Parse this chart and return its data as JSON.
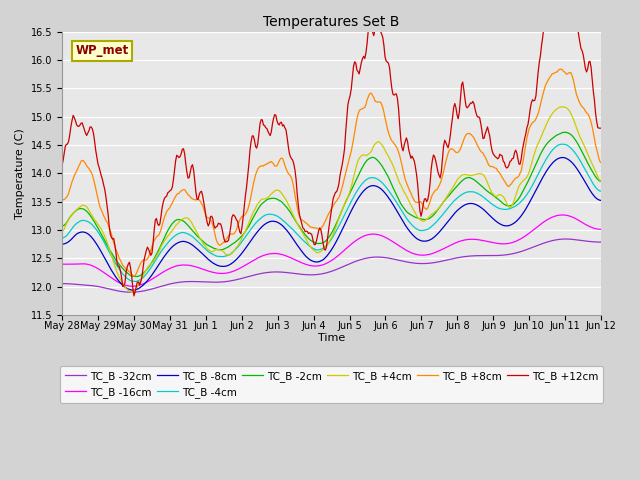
{
  "title": "Temperatures Set B",
  "xlabel": "Time",
  "ylabel": "Temperature (C)",
  "ylim": [
    11.5,
    16.5
  ],
  "background_color": "#d3d3d3",
  "plot_bg_color": "#e8e8e8",
  "grid_color": "#ffffff",
  "wp_met_label": "WP_met",
  "wp_met_color": "#8B0000",
  "wp_met_bg": "#ffffcc",
  "wp_met_border": "#aaaa00",
  "series": [
    {
      "label": "TC_B -32cm",
      "color": "#9933cc",
      "base": 11.85,
      "amplitude": 0.12,
      "trend": 0.95,
      "smoothing": 25
    },
    {
      "label": "TC_B -16cm",
      "color": "#ff00ff",
      "base": 12.05,
      "amplitude": 0.22,
      "trend": 1.05,
      "smoothing": 18
    },
    {
      "label": "TC_B -8cm",
      "color": "#0000cc",
      "base": 12.2,
      "amplitude": 0.45,
      "trend": 1.55,
      "smoothing": 10
    },
    {
      "label": "TC_B -4cm",
      "color": "#00cccc",
      "base": 12.35,
      "amplitude": 0.42,
      "trend": 1.65,
      "smoothing": 7
    },
    {
      "label": "TC_B -2cm",
      "color": "#00bb00",
      "base": 12.45,
      "amplitude": 0.48,
      "trend": 1.75,
      "smoothing": 5
    },
    {
      "label": "TC_B +4cm",
      "color": "#cccc00",
      "base": 12.35,
      "amplitude": 0.6,
      "trend": 2.1,
      "smoothing": 3
    },
    {
      "label": "TC_B +8cm",
      "color": "#ff8800",
      "base": 12.75,
      "amplitude": 0.75,
      "trend": 2.2,
      "smoothing": 2
    },
    {
      "label": "TC_B +12cm",
      "color": "#cc0000",
      "base": 12.9,
      "amplitude": 1.1,
      "trend": 2.85,
      "smoothing": 1
    }
  ],
  "x_tick_labels": [
    "May 28",
    "May 29",
    "May 30",
    "May 31",
    "Jun 1",
    "Jun 2",
    "Jun 3",
    "Jun 4",
    "Jun 5",
    "Jun 6",
    "Jun 7",
    "Jun 8",
    "Jun 9",
    "Jun 10",
    "Jun 11",
    "Jun 12"
  ],
  "n_points": 480,
  "days": 14,
  "title_fontsize": 10,
  "label_fontsize": 8,
  "tick_fontsize": 7,
  "legend_fontsize": 7.5,
  "linewidth": 0.9
}
